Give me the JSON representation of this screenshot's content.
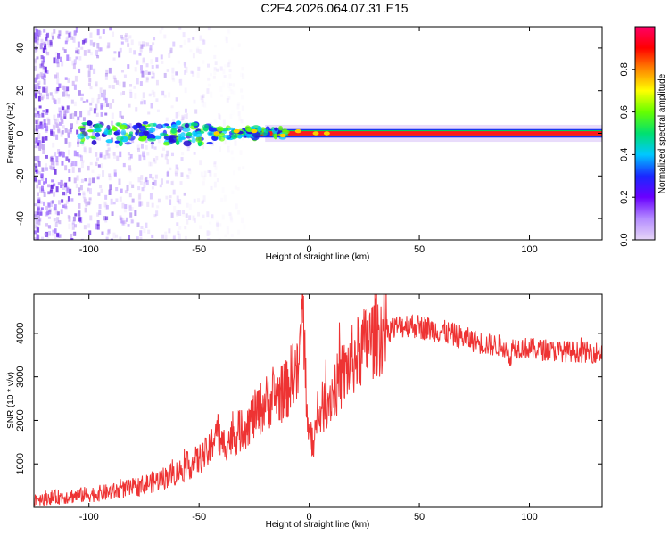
{
  "title": "C2E4.2026.064.07.31.E15",
  "colors": {
    "snr_line": "#ee3333",
    "band_core": "#ff1a1a",
    "band_edge": "#00d060",
    "band_outer": "#1a28ff",
    "scatter": "#7a22e6"
  },
  "chart_data": [
    {
      "type": "heatmap",
      "xlabel": "Height of straight line (km)",
      "ylabel": "Frequency (Hz)",
      "xlim": [
        -125,
        133
      ],
      "ylim": [
        -50,
        50
      ],
      "xticks": [
        -100,
        -50,
        0,
        50,
        100
      ],
      "xtick_labels": [
        "-100",
        "-50",
        "0",
        "50",
        "100"
      ],
      "yticks": [
        -40,
        -20,
        0,
        20,
        40
      ],
      "ytick_labels": [
        "-40",
        "-20",
        "0",
        "20",
        "40"
      ],
      "band_center_hz": 0,
      "band_halfwidth_hz": 2,
      "broadband_noise_until_km": -50,
      "colorbar": {
        "label": "Normalized spectral amplitude",
        "range": [
          0,
          1
        ],
        "ticks": [
          0.0,
          0.2,
          0.4,
          0.6,
          0.8
        ],
        "tick_labels": [
          "0.0",
          "0.2",
          "0.4",
          "0.6",
          "0.8"
        ],
        "colormap": [
          "#e6d6f7",
          "#b48cff",
          "#6a00ff",
          "#1a28ff",
          "#00c8ff",
          "#00e070",
          "#66ff00",
          "#ffff00",
          "#ff8800",
          "#ff0000",
          "#ff0066"
        ]
      }
    },
    {
      "type": "line",
      "xlabel": "Height of straight line (km)",
      "ylabel": "SNR (10 * v/v)",
      "xlim": [
        -125,
        133
      ],
      "ylim": [
        0,
        4900
      ],
      "xticks": [
        -100,
        -50,
        0,
        50,
        100
      ],
      "xtick_labels": [
        "-100",
        "-50",
        "0",
        "50",
        "100"
      ],
      "yticks": [
        1000,
        2000,
        3000,
        4000
      ],
      "ytick_labels": [
        "1000",
        "2000",
        "3000",
        "4000"
      ],
      "series": [
        {
          "x": [
            -125,
            -110,
            -100,
            -90,
            -80,
            -70,
            -60,
            -50,
            -45,
            -42,
            -40,
            -38,
            -35,
            -30,
            -25,
            -20,
            -15,
            -10,
            -7,
            -5,
            -4,
            -3,
            -2,
            -1,
            0,
            2,
            5,
            10,
            15,
            20,
            25,
            30,
            35,
            40,
            45,
            50,
            55,
            60,
            70,
            80,
            90,
            91,
            92,
            100,
            110,
            120,
            133
          ],
          "y": [
            200,
            250,
            300,
            350,
            450,
            600,
            800,
            1100,
            1300,
            1900,
            1400,
            1500,
            1600,
            1800,
            2100,
            2400,
            2550,
            2700,
            3200,
            3000,
            3700,
            4800,
            3500,
            2300,
            1500,
            1600,
            2200,
            2600,
            3000,
            3400,
            3700,
            3950,
            4050,
            4150,
            4200,
            4150,
            4100,
            4050,
            3900,
            3750,
            3700,
            3200,
            3700,
            3650,
            3600,
            3580,
            3560
          ]
        }
      ]
    }
  ]
}
